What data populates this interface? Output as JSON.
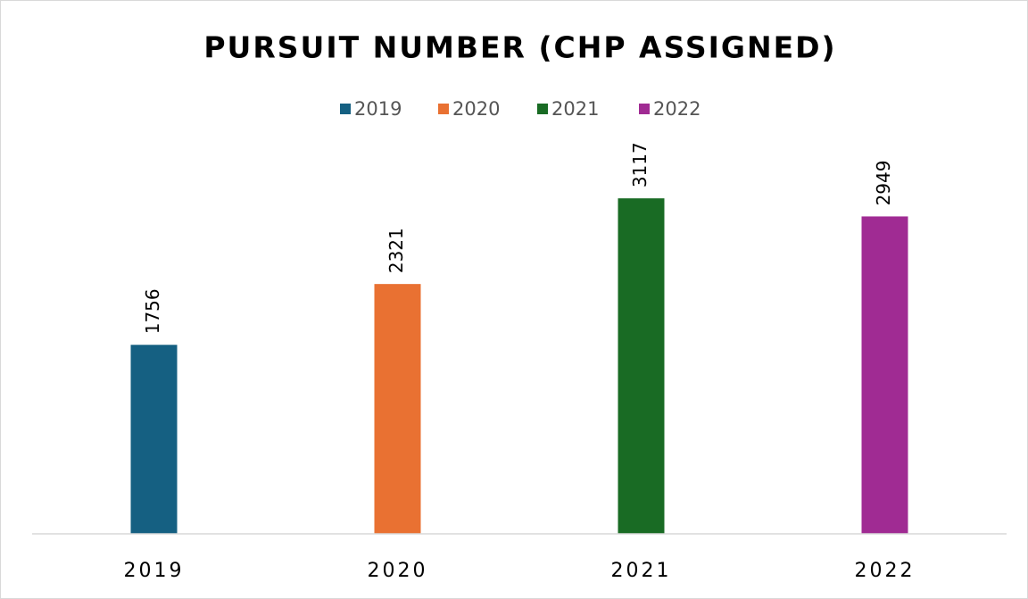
{
  "chart_data": {
    "type": "bar",
    "title": "PURSUIT NUMBER (CHP ASSIGNED)",
    "categories": [
      "2019",
      "2020",
      "2021",
      "2022"
    ],
    "values": [
      1756,
      2321,
      3117,
      2949
    ],
    "colors": [
      "#156082",
      "#e97132",
      "#196b24",
      "#a02b93"
    ],
    "ylim": [
      0,
      3500
    ],
    "legend": "top"
  }
}
